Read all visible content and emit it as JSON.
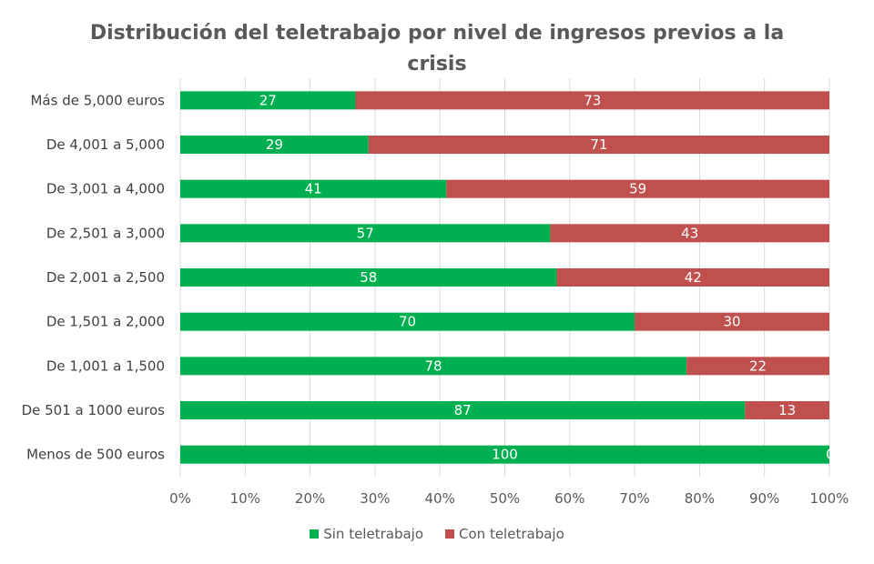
{
  "chart_data": {
    "type": "bar",
    "orientation": "horizontal",
    "stacked": true,
    "title": "Distribución del teletrabajo por nivel de ingresos previos a la crisis",
    "title_lines": [
      "Distribución del teletrabajo por nivel de ingresos previos a la",
      "crisis"
    ],
    "categories": [
      "Más de 5,000 euros",
      "De 4,001 a 5,000",
      "De 3,001 a 4,000",
      "De 2,501 a 3,000",
      "De 2,001 a 2,500",
      "De 1,501 a 2,000",
      "De 1,001 a 1,500",
      "De 501 a 1000 euros",
      "Menos de 500 euros"
    ],
    "series": [
      {
        "name": "Sin teletrabajo",
        "color": "#00B050",
        "values": [
          27,
          29,
          41,
          57,
          58,
          70,
          78,
          87,
          100
        ]
      },
      {
        "name": "Con teletrabajo",
        "color": "#C0504D",
        "values": [
          73,
          71,
          59,
          43,
          42,
          30,
          22,
          13,
          0
        ]
      }
    ],
    "xlim": [
      0,
      100
    ],
    "x_ticks": [
      "0%",
      "10%",
      "20%",
      "30%",
      "40%",
      "50%",
      "60%",
      "70%",
      "80%",
      "90%",
      "100%"
    ],
    "grid": true,
    "legend_position": "bottom"
  }
}
